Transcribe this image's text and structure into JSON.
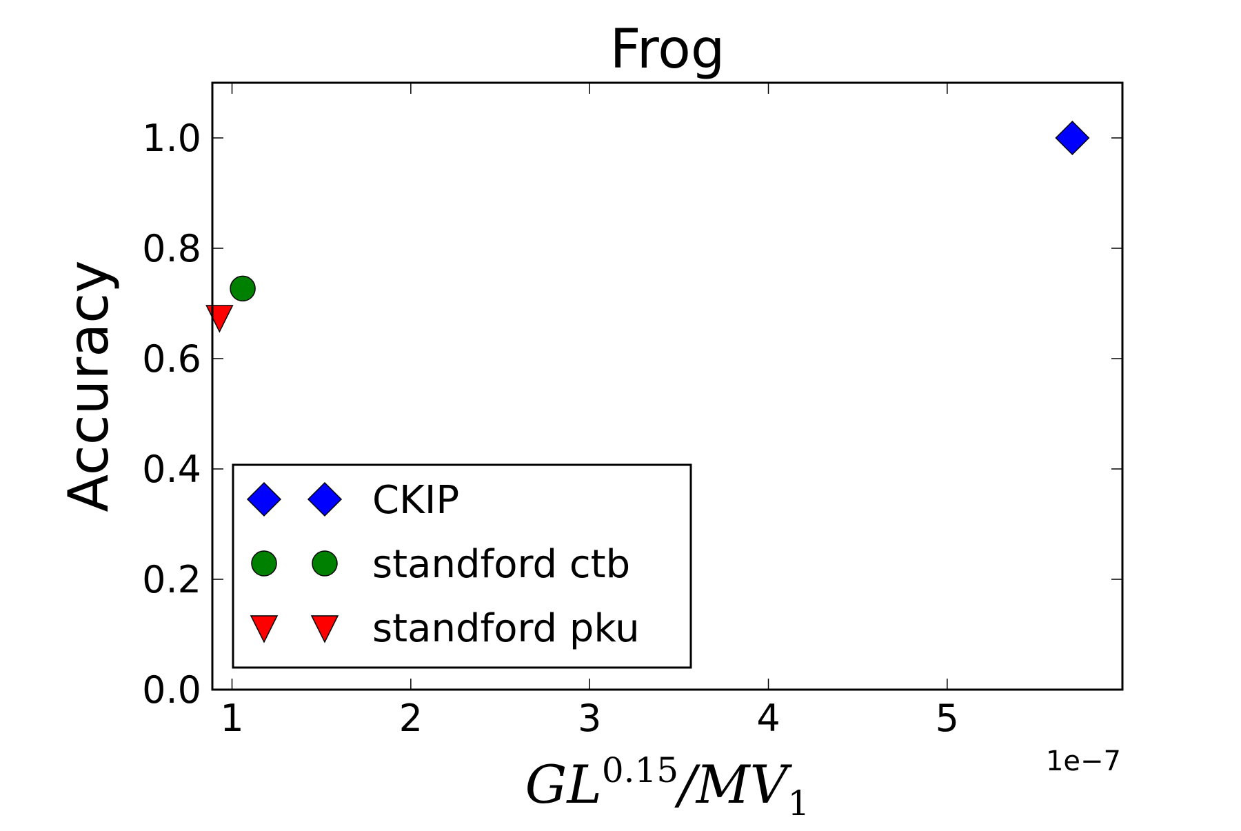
{
  "chart_data": {
    "type": "scatter",
    "title": "Frog",
    "ylabel": "Accuracy",
    "xlabel": {
      "base1": "GL",
      "sup": "0.15",
      "base2": "/MV",
      "sub": "1"
    },
    "x_multiplier_label": "1e−7",
    "xlim": [
      0.89,
      5.98
    ],
    "ylim": [
      0.0,
      1.1
    ],
    "x_ticks": [
      1,
      2,
      3,
      4,
      5
    ],
    "y_ticks": [
      0.0,
      0.2,
      0.4,
      0.6,
      0.8,
      1.0
    ],
    "x_tick_labels": [
      "1",
      "2",
      "3",
      "4",
      "5"
    ],
    "y_tick_labels": [
      "0.0",
      "0.2",
      "0.4",
      "0.6",
      "0.8",
      "1.0"
    ],
    "grid": false,
    "legend_position": "lower-left",
    "series": [
      {
        "name": "CKIP",
        "marker": "diamond",
        "color": "#0000ff",
        "points": [
          [
            5.7,
            1.0
          ]
        ]
      },
      {
        "name": "standford ctb",
        "marker": "circle",
        "color": "#008000",
        "points": [
          [
            1.06,
            0.727
          ]
        ]
      },
      {
        "name": "standford pku",
        "marker": "triangle-down",
        "color": "#ff0000",
        "points": [
          [
            0.93,
            0.675
          ]
        ]
      }
    ]
  }
}
